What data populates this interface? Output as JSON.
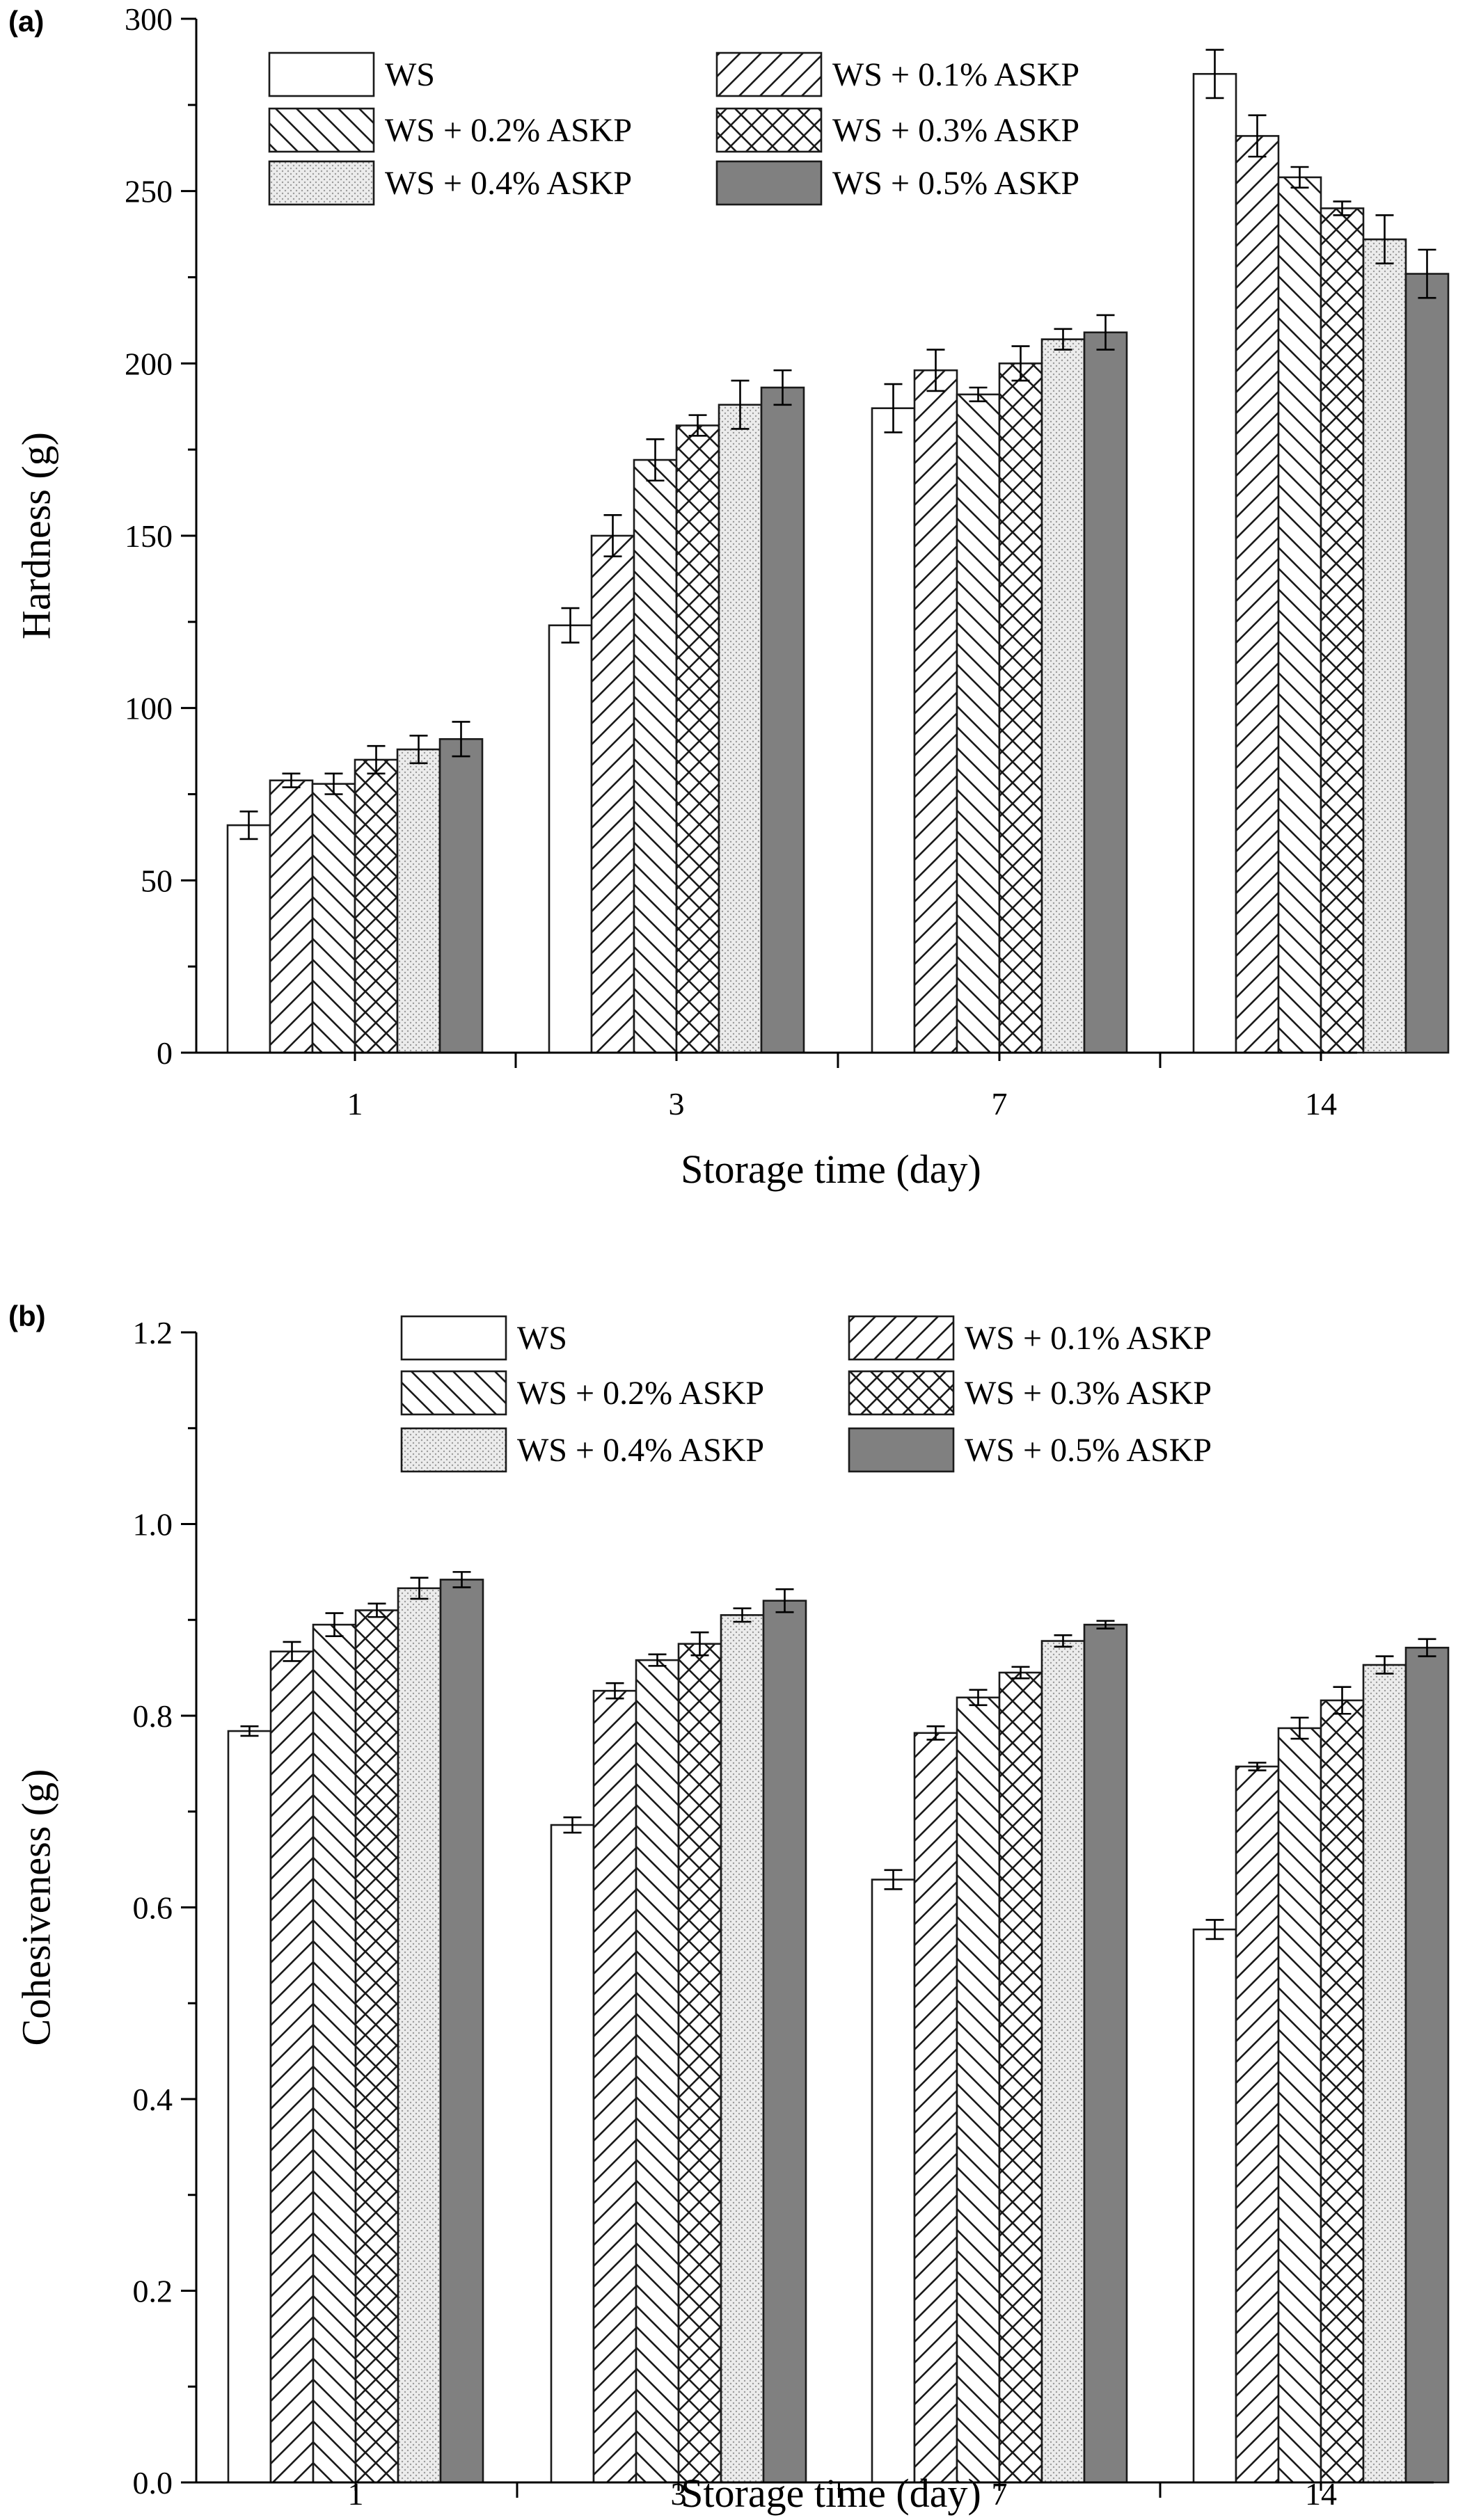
{
  "colors": {
    "axis": "#000000",
    "bar_edge": "#1a1a1a",
    "solid_fill": "#808080",
    "dot_fill": "#e6e6e6",
    "background": "#ffffff"
  },
  "chart_data": [
    {
      "type": "bar",
      "panel_label": "(a)",
      "title": "",
      "xlabel": "Storage time (day)",
      "ylabel": "Hardness (g)",
      "ylim": [
        0,
        300
      ],
      "yticks": [
        "0",
        "50",
        "100",
        "150",
        "200",
        "250",
        "300"
      ],
      "categories": [
        "1",
        "3",
        "7",
        "14"
      ],
      "grid": false,
      "legend_position": "top",
      "series": [
        {
          "name": "WS",
          "pattern": "none",
          "values": [
            66,
            124,
            187,
            284
          ],
          "errors": [
            4,
            5,
            7,
            7
          ]
        },
        {
          "name": "WS + 0.1% ASKP",
          "pattern": "hatch-forward",
          "values": [
            79,
            150,
            198,
            266
          ],
          "errors": [
            2,
            6,
            6,
            6
          ]
        },
        {
          "name": "WS + 0.2% ASKP",
          "pattern": "hatch-back",
          "values": [
            78,
            172,
            191,
            254
          ],
          "errors": [
            3,
            6,
            2,
            3
          ]
        },
        {
          "name": "WS + 0.3% ASKP",
          "pattern": "crosshatch",
          "values": [
            85,
            182,
            200,
            245
          ],
          "errors": [
            4,
            3,
            5,
            2
          ]
        },
        {
          "name": "WS + 0.4% ASKP",
          "pattern": "dots",
          "values": [
            88,
            188,
            207,
            236
          ],
          "errors": [
            4,
            7,
            3,
            7
          ]
        },
        {
          "name": "WS + 0.5% ASKP",
          "pattern": "solid",
          "values": [
            91,
            193,
            209,
            226
          ],
          "errors": [
            5,
            5,
            5,
            7
          ]
        }
      ]
    },
    {
      "type": "bar",
      "panel_label": "(b)",
      "title": "",
      "xlabel": "Storage time (day)",
      "ylabel": "Cohesiveness (g)",
      "ylim": [
        0,
        1.2
      ],
      "yticks": [
        "0.0",
        "0.2",
        "0.4",
        "0.6",
        "0.8",
        "1.0",
        "1.2"
      ],
      "categories": [
        "1",
        "3",
        "7",
        "14"
      ],
      "grid": false,
      "legend_position": "top",
      "series": [
        {
          "name": "WS",
          "pattern": "none",
          "values": [
            0.784,
            0.686,
            0.629,
            0.577
          ],
          "errors": [
            0.005,
            0.008,
            0.01,
            0.01
          ]
        },
        {
          "name": "WS + 0.1% ASKP",
          "pattern": "hatch-forward",
          "values": [
            0.867,
            0.826,
            0.782,
            0.747
          ],
          "errors": [
            0.01,
            0.008,
            0.007,
            0.004
          ]
        },
        {
          "name": "WS + 0.2% ASKP",
          "pattern": "hatch-back",
          "values": [
            0.895,
            0.858,
            0.819,
            0.787
          ],
          "errors": [
            0.012,
            0.006,
            0.008,
            0.011
          ]
        },
        {
          "name": "WS + 0.3% ASKP",
          "pattern": "crosshatch",
          "values": [
            0.91,
            0.875,
            0.845,
            0.816
          ],
          "errors": [
            0.007,
            0.012,
            0.006,
            0.014
          ]
        },
        {
          "name": "WS + 0.4% ASKP",
          "pattern": "dots",
          "values": [
            0.933,
            0.905,
            0.878,
            0.853
          ],
          "errors": [
            0.011,
            0.007,
            0.006,
            0.009
          ]
        },
        {
          "name": "WS + 0.5% ASKP",
          "pattern": "solid",
          "values": [
            0.942,
            0.92,
            0.895,
            0.871
          ],
          "errors": [
            0.008,
            0.012,
            0.004,
            0.009
          ]
        }
      ]
    }
  ]
}
